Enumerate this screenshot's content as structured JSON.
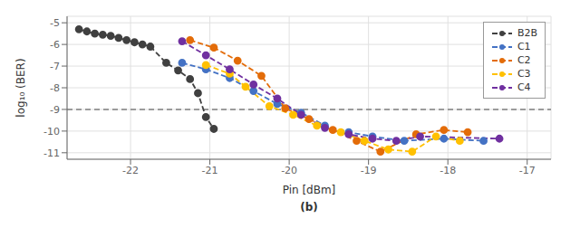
{
  "chart_data": {
    "type": "line",
    "title": "",
    "xlabel": "Pin [dBm]",
    "ylabel": "log₁₀ (BER)",
    "xlim": [
      -22.8,
      -16.7
    ],
    "ylim": [
      -11.3,
      -4.7
    ],
    "xticks": [
      -22,
      -21,
      -20,
      -19,
      -18,
      -17
    ],
    "yticks": [
      -11,
      -10,
      -9,
      -8,
      -7,
      -6,
      -5
    ],
    "grid": true,
    "legend": "upper right",
    "hlines": [
      -9
    ],
    "annotations": [
      "(b)"
    ],
    "series": [
      {
        "name": "B2B",
        "color": "#404040",
        "line_style": "dashed",
        "marker": "circle",
        "x": [
          -22.65,
          -22.55,
          -22.45,
          -22.35,
          -22.25,
          -22.15,
          -22.05,
          -21.95,
          -21.85,
          -21.75,
          -21.55,
          -21.4,
          -21.25,
          -21.15,
          -21.05,
          -20.95
        ],
        "values": [
          -5.3,
          -5.4,
          -5.5,
          -5.55,
          -5.6,
          -5.7,
          -5.8,
          -5.9,
          -6.0,
          -6.1,
          -6.85,
          -7.2,
          -7.6,
          -8.25,
          -9.35,
          -9.9
        ]
      },
      {
        "name": "C1",
        "color": "#4472C4",
        "line_style": "dashed",
        "marker": "circle",
        "x": [
          -21.35,
          -21.05,
          -20.75,
          -20.45,
          -20.15,
          -19.85,
          -19.55,
          -19.25,
          -18.95,
          -18.55,
          -18.05,
          -17.55
        ],
        "values": [
          -6.85,
          -7.15,
          -7.55,
          -8.15,
          -8.75,
          -9.15,
          -9.75,
          -10.05,
          -10.25,
          -10.45,
          -10.35,
          -10.45
        ]
      },
      {
        "name": "C2",
        "color": "#E36C09",
        "line_style": "dashed",
        "marker": "circle",
        "x": [
          -21.25,
          -20.95,
          -20.65,
          -20.35,
          -20.05,
          -19.75,
          -19.45,
          -19.15,
          -18.85,
          -18.4,
          -18.05,
          -17.75
        ],
        "values": [
          -5.8,
          -6.15,
          -6.75,
          -7.45,
          -8.95,
          -9.45,
          -9.95,
          -10.45,
          -10.95,
          -10.15,
          -9.95,
          -10.05
        ]
      },
      {
        "name": "C3",
        "color": "#FFC000",
        "line_style": "dashed",
        "marker": "circle",
        "x": [
          -21.05,
          -20.75,
          -20.55,
          -20.25,
          -19.95,
          -19.65,
          -19.35,
          -19.05,
          -18.75,
          -18.45,
          -18.15,
          -17.85
        ],
        "values": [
          -6.95,
          -7.35,
          -7.95,
          -8.85,
          -9.25,
          -9.75,
          -10.05,
          -10.45,
          -10.85,
          -10.95,
          -10.25,
          -10.45
        ]
      },
      {
        "name": "C4",
        "color": "#7030A0",
        "line_style": "dashed",
        "marker": "circle",
        "x": [
          -21.35,
          -21.05,
          -20.75,
          -20.45,
          -20.15,
          -19.85,
          -19.55,
          -19.25,
          -18.95,
          -18.65,
          -18.35,
          -17.35
        ],
        "values": [
          -5.85,
          -6.5,
          -7.15,
          -7.85,
          -8.5,
          -9.25,
          -9.85,
          -10.15,
          -10.35,
          -10.45,
          -10.25,
          -10.35
        ]
      }
    ]
  }
}
